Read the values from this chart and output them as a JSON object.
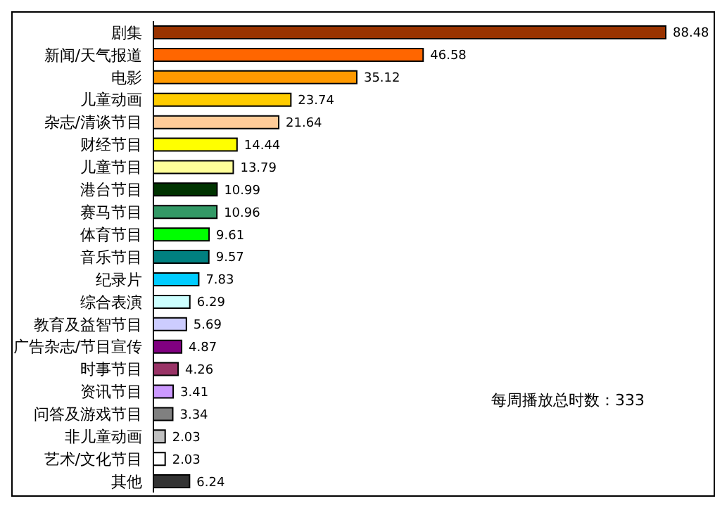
{
  "chart_data": {
    "type": "bar",
    "orientation": "horizontal",
    "data_labels": true,
    "categories": [
      "剧集",
      "新闻/天气报道",
      "电影",
      "儿童动画",
      "杂志/清谈节目",
      "财经节目",
      "儿童节目",
      "港台节目",
      "赛马节目",
      "体育节目",
      "音乐节目",
      "纪录片",
      "综合表演",
      "教育及益智节目",
      "广告杂志/节目宣传",
      "时事节目",
      "资讯节目",
      "问答及游戏节目",
      "非儿童动画",
      "艺术/文化节目",
      "其他"
    ],
    "values": [
      88.48,
      46.58,
      35.12,
      23.74,
      21.64,
      14.44,
      13.79,
      10.99,
      10.96,
      9.61,
      9.57,
      7.83,
      6.29,
      5.69,
      4.87,
      4.26,
      3.41,
      3.34,
      2.03,
      2.03,
      6.24
    ],
    "colors": [
      "#993300",
      "#ff6600",
      "#ff9900",
      "#ffcc00",
      "#ffcc99",
      "#ffff00",
      "#ffff99",
      "#003300",
      "#339966",
      "#00ff00",
      "#008080",
      "#00ccff",
      "#ccffff",
      "#ccccff",
      "#800080",
      "#993366",
      "#cc99ff",
      "#808080",
      "#c0c0c0",
      "#ffffff",
      "#333333"
    ],
    "annotations": [
      "每周播放总时数：333"
    ]
  }
}
